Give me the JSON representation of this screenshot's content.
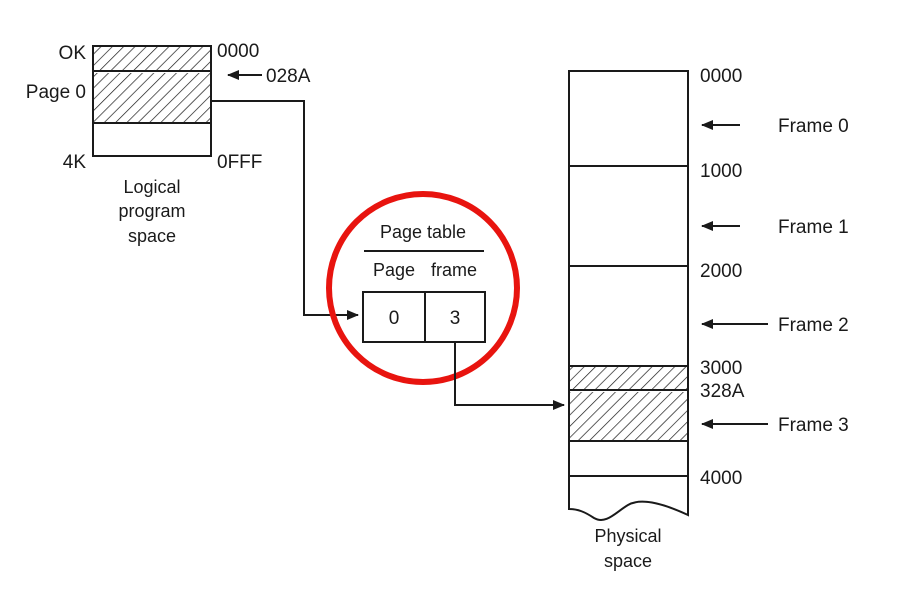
{
  "logical": {
    "top_label": "OK",
    "page_label": "Page 0",
    "bottom_label": "4K",
    "addr_start": "0000",
    "addr_pointer": "028A",
    "addr_end": "0FFF",
    "caption_line1": "Logical",
    "caption_line2": "program",
    "caption_line3": "space"
  },
  "page_table": {
    "title": "Page table",
    "col_page": "Page",
    "col_frame": "frame",
    "page_value": "0",
    "frame_value": "3",
    "highlight_color": "#e8140f"
  },
  "physical": {
    "addr_0": "0000",
    "addr_1": "1000",
    "addr_2": "2000",
    "addr_3": "3000",
    "addr_328A": "328A",
    "addr_4": "4000",
    "frame0": "Frame 0",
    "frame1": "Frame 1",
    "frame2": "Frame 2",
    "frame3": "Frame 3",
    "caption_line1": "Physical",
    "caption_line2": "space"
  }
}
